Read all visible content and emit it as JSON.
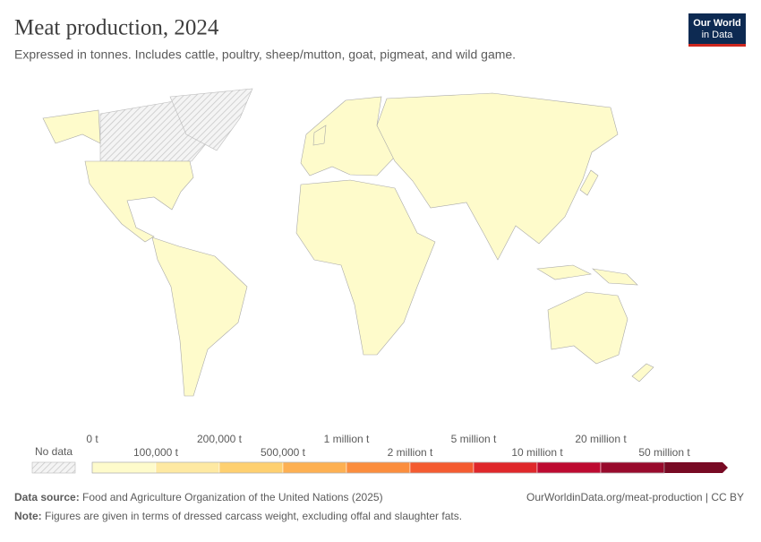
{
  "header": {
    "title": "Meat production, 2024",
    "subtitle": "Expressed in tonnes. Includes cattle, poultry, sheep/mutton, goat, pigmeat, and wild game.",
    "logo": [
      "Our World",
      "in Data"
    ]
  },
  "legend": {
    "no_data": "No data",
    "ticks": [
      "0 t",
      "100,000 t",
      "200,000 t",
      "500,000 t",
      "1 million t",
      "2 million t",
      "5 million t",
      "10 million t",
      "20 million t",
      "50 million t"
    ],
    "colors": [
      "#fefbcb",
      "#fee9a2",
      "#fed070",
      "#fdb052",
      "#fb8d3d",
      "#f45b30",
      "#df272a",
      "#bd0a30",
      "#980a2c",
      "#780a24"
    ]
  },
  "footer": {
    "source_label": "Data source:",
    "source": "Food and Agriculture Organization of the United Nations (2025)",
    "url": "OurWorldinData.org/meat-production | CC BY",
    "note_label": "Note:",
    "note": "Figures are given in terms of dressed carcass weight, excluding offal and slaughter fats."
  }
}
